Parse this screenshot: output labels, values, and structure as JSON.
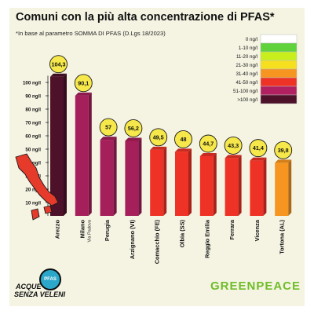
{
  "title": "Comuni con la più alta concentrazione di PFAS*",
  "subtitle": "*In base al parametro SOMMA DI PFAS (D.Lgs 18/2023)",
  "legend": [
    {
      "label": "0 ng/l",
      "color": "#ffffff"
    },
    {
      "label": "1-10 ng/l",
      "color": "#5fd23c"
    },
    {
      "label": "11-20 ng/l",
      "color": "#c8ef1c"
    },
    {
      "label": "21-30 ng/l",
      "color": "#f6df1f"
    },
    {
      "label": "31-40 ng/l",
      "color": "#f6951f"
    },
    {
      "label": "41-50 ng/l",
      "color": "#ee3226"
    },
    {
      "label": "51-100 ng/l",
      "color": "#b12061"
    },
    {
      "label": ">100 ng/l",
      "color": "#4d1229"
    }
  ],
  "chart_data": {
    "type": "bar",
    "categories": [
      "Arezzo",
      "Milano",
      "Perugia",
      "Arzignano (VI)",
      "Comacchio (FE)",
      "Olbia (SS)",
      "Reggio Emilia",
      "Ferrara",
      "Vicenza",
      "Tortona (AL)"
    ],
    "category_sublabels": [
      "",
      "Via Padova",
      "",
      "",
      "",
      "",
      "",
      "",
      "",
      ""
    ],
    "values": [
      104.3,
      90.1,
      57,
      56.2,
      49.5,
      48,
      44.7,
      43.3,
      41.4,
      39.8
    ],
    "value_labels": [
      "104,3",
      "90,1",
      "57",
      "56,2",
      "49,5",
      "48",
      "44,7",
      "43,3",
      "41,4",
      "39,8"
    ],
    "bar_colors": [
      "#4d1229",
      "#a51f5b",
      "#a51f5b",
      "#a51f5b",
      "#ee3226",
      "#ee3226",
      "#ee3226",
      "#ee3226",
      "#ee3226",
      "#f6951f"
    ],
    "yticks": [
      10,
      20,
      30,
      40,
      50,
      60,
      70,
      80,
      90,
      100
    ],
    "ytick_labels": [
      "10 ng/l",
      "20 ng/l",
      "30 ng/l",
      "40 ng/l",
      "50 ng/l",
      "60 ng/l",
      "70 ng/l",
      "80 ng/l",
      "90 ng/l",
      "100 ng/l"
    ],
    "ylim": [
      0,
      110
    ],
    "label_bubble_color": "#f6e84a",
    "legend_position": "top-right"
  },
  "logos": {
    "left_line1": "ACQUE",
    "left_line2": "SENZA VELENI",
    "left_badge": "PFAS",
    "right": "GREENPEACE"
  }
}
